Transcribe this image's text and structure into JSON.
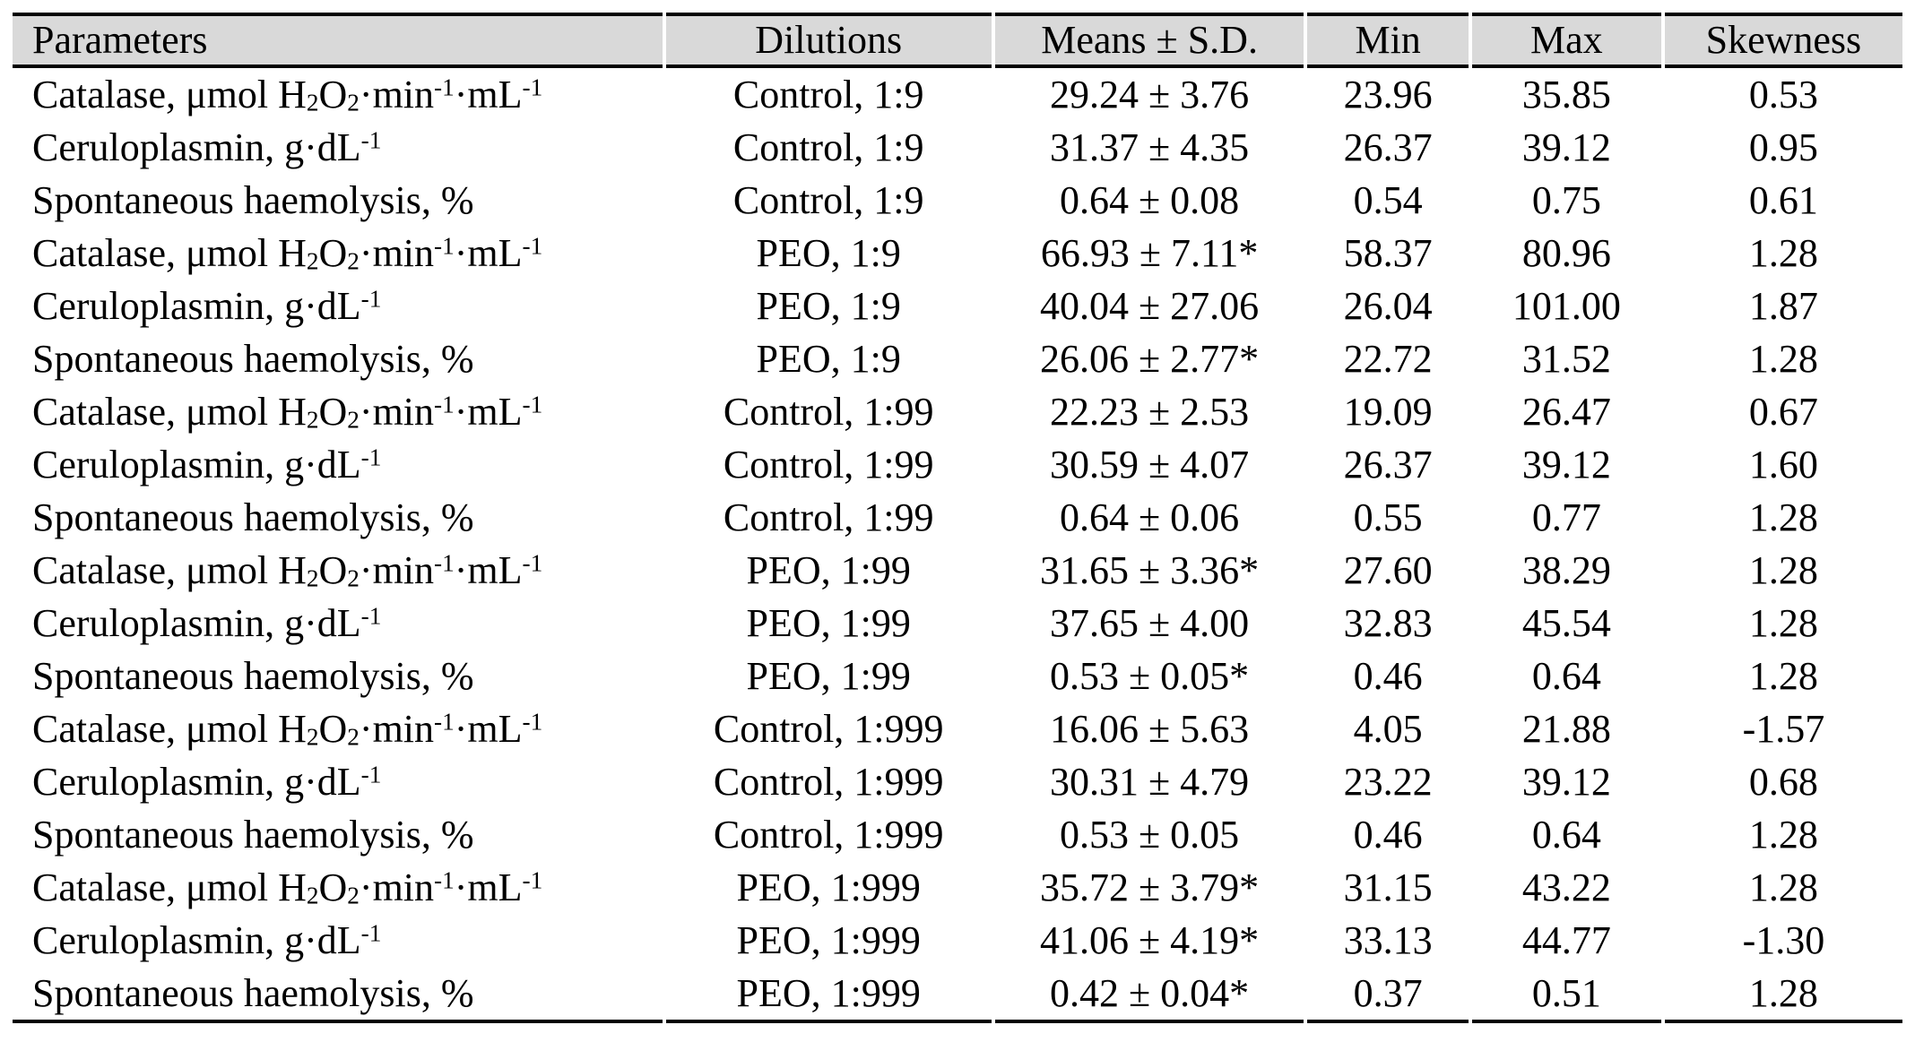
{
  "styles": {
    "header_bg": "#d9d9d9",
    "rule_color": "#000000",
    "text_color": "#000000"
  },
  "table": {
    "columns": [
      {
        "label": "Parameters"
      },
      {
        "label": "Dilutions"
      },
      {
        "label": "Means ± S.D."
      },
      {
        "label": "Min"
      },
      {
        "label": "Max"
      },
      {
        "label": "Skewness"
      }
    ],
    "rows": [
      {
        "parameter": [
          {
            "t": "Catalase, μmol H"
          },
          {
            "sub": "2"
          },
          {
            "t": "O"
          },
          {
            "sub": "2"
          },
          {
            "t": "·min"
          },
          {
            "sup": "-1"
          },
          {
            "t": "·mL"
          },
          {
            "sup": "-1"
          }
        ],
        "dilution": "Control, 1:9",
        "mean_sd": "29.24 ± 3.76",
        "min": "23.96",
        "max": "35.85",
        "skewness": "0.53"
      },
      {
        "parameter": [
          {
            "t": "Ceruloplasmin, g·dL"
          },
          {
            "sup": "-1"
          }
        ],
        "dilution": "Control, 1:9",
        "mean_sd": "31.37 ± 4.35",
        "min": "26.37",
        "max": "39.12",
        "skewness": "0.95"
      },
      {
        "parameter": [
          {
            "t": "Spontaneous haemolysis, %"
          }
        ],
        "dilution": "Control, 1:9",
        "mean_sd": "0.64 ± 0.08",
        "min": "0.54",
        "max": "0.75",
        "skewness": "0.61"
      },
      {
        "parameter": [
          {
            "t": "Catalase, μmol H"
          },
          {
            "sub": "2"
          },
          {
            "t": "O"
          },
          {
            "sub": "2"
          },
          {
            "t": "·min"
          },
          {
            "sup": "-1"
          },
          {
            "t": "·mL"
          },
          {
            "sup": "-1"
          }
        ],
        "dilution": "PEO, 1:9",
        "mean_sd": "66.93 ± 7.11*",
        "min": "58.37",
        "max": "80.96",
        "skewness": "1.28"
      },
      {
        "parameter": [
          {
            "t": "Ceruloplasmin, g·dL"
          },
          {
            "sup": "-1"
          }
        ],
        "dilution": "PEO, 1:9",
        "mean_sd": "40.04 ± 27.06",
        "min": "26.04",
        "max": "101.00",
        "skewness": "1.87"
      },
      {
        "parameter": [
          {
            "t": "Spontaneous haemolysis, %"
          }
        ],
        "dilution": "PEO, 1:9",
        "mean_sd": "26.06 ± 2.77*",
        "min": "22.72",
        "max": "31.52",
        "skewness": "1.28"
      },
      {
        "parameter": [
          {
            "t": "Catalase, μmol H"
          },
          {
            "sub": "2"
          },
          {
            "t": "O"
          },
          {
            "sub": "2"
          },
          {
            "t": "·min"
          },
          {
            "sup": "-1"
          },
          {
            "t": "·mL"
          },
          {
            "sup": "-1"
          }
        ],
        "dilution": "Control, 1:99",
        "mean_sd": "22.23 ± 2.53",
        "min": "19.09",
        "max": "26.47",
        "skewness": "0.67"
      },
      {
        "parameter": [
          {
            "t": "Ceruloplasmin, g·dL"
          },
          {
            "sup": "-1"
          }
        ],
        "dilution": "Control, 1:99",
        "mean_sd": "30.59 ± 4.07",
        "min": "26.37",
        "max": "39.12",
        "skewness": "1.60"
      },
      {
        "parameter": [
          {
            "t": "Spontaneous haemolysis, %"
          }
        ],
        "dilution": "Control, 1:99",
        "mean_sd": "0.64 ± 0.06",
        "min": "0.55",
        "max": "0.77",
        "skewness": "1.28"
      },
      {
        "parameter": [
          {
            "t": "Catalase, μmol H"
          },
          {
            "sub": "2"
          },
          {
            "t": "O"
          },
          {
            "sub": "2"
          },
          {
            "t": "·min"
          },
          {
            "sup": "-1"
          },
          {
            "t": "·mL"
          },
          {
            "sup": "-1"
          }
        ],
        "dilution": "PEO, 1:99",
        "mean_sd": "31.65 ± 3.36*",
        "min": "27.60",
        "max": "38.29",
        "skewness": "1.28"
      },
      {
        "parameter": [
          {
            "t": "Ceruloplasmin, g·dL"
          },
          {
            "sup": "-1"
          }
        ],
        "dilution": "PEO, 1:99",
        "mean_sd": "37.65 ± 4.00",
        "min": "32.83",
        "max": "45.54",
        "skewness": "1.28"
      },
      {
        "parameter": [
          {
            "t": "Spontaneous haemolysis, %"
          }
        ],
        "dilution": "PEO, 1:99",
        "mean_sd": "0.53 ± 0.05*",
        "min": "0.46",
        "max": "0.64",
        "skewness": "1.28"
      },
      {
        "parameter": [
          {
            "t": "Catalase, μmol H"
          },
          {
            "sub": "2"
          },
          {
            "t": "O"
          },
          {
            "sub": "2"
          },
          {
            "t": "·min"
          },
          {
            "sup": "-1"
          },
          {
            "t": "·mL"
          },
          {
            "sup": "-1"
          }
        ],
        "dilution": "Control, 1:999",
        "mean_sd": "16.06 ± 5.63",
        "min": "4.05",
        "max": "21.88",
        "skewness": "-1.57"
      },
      {
        "parameter": [
          {
            "t": "Ceruloplasmin, g·dL"
          },
          {
            "sup": "-1"
          }
        ],
        "dilution": "Control, 1:999",
        "mean_sd": "30.31 ± 4.79",
        "min": "23.22",
        "max": "39.12",
        "skewness": "0.68"
      },
      {
        "parameter": [
          {
            "t": "Spontaneous haemolysis, %"
          }
        ],
        "dilution": "Control, 1:999",
        "mean_sd": "0.53 ± 0.05",
        "min": "0.46",
        "max": "0.64",
        "skewness": "1.28"
      },
      {
        "parameter": [
          {
            "t": "Catalase, μmol H"
          },
          {
            "sub": "2"
          },
          {
            "t": "O"
          },
          {
            "sub": "2"
          },
          {
            "t": "·min"
          },
          {
            "sup": "-1"
          },
          {
            "t": "·mL"
          },
          {
            "sup": "-1"
          }
        ],
        "dilution": "PEO, 1:999",
        "mean_sd": "35.72 ± 3.79*",
        "min": "31.15",
        "max": "43.22",
        "skewness": "1.28"
      },
      {
        "parameter": [
          {
            "t": "Ceruloplasmin, g·dL"
          },
          {
            "sup": "-1"
          }
        ],
        "dilution": "PEO, 1:999",
        "mean_sd": "41.06 ± 4.19*",
        "min": "33.13",
        "max": "44.77",
        "skewness": "-1.30"
      },
      {
        "parameter": [
          {
            "t": "Spontaneous haemolysis, %"
          }
        ],
        "dilution": "PEO, 1:999",
        "mean_sd": "0.42 ± 0.04*",
        "min": "0.37",
        "max": "0.51",
        "skewness": "1.28"
      }
    ]
  }
}
